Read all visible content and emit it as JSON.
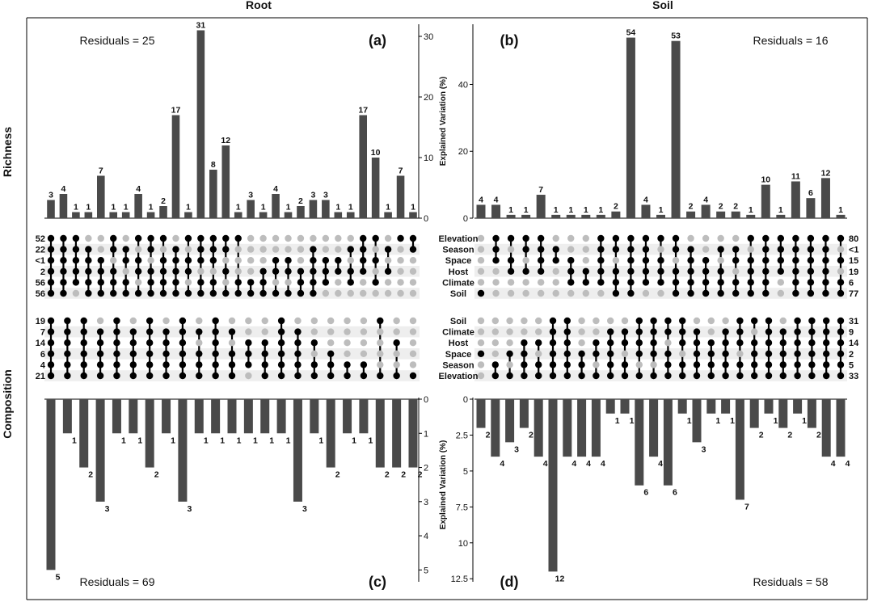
{
  "headers": {
    "root": "Root",
    "soil": "Soil",
    "richness": "Richness",
    "composition": "Composition"
  },
  "axis_label": "Explained Variation (%)",
  "colors": {
    "bar": "#4a4a4a",
    "dot_on": "#000000",
    "dot_off": "#bdbdbd",
    "stripe": "#eeeeee",
    "axis": "#000000"
  },
  "set_labels": {
    "richness": [
      "Elevation",
      "Season",
      "Space",
      "Host",
      "Climate",
      "Soil"
    ],
    "composition": [
      "Soil",
      "Climate",
      "Host",
      "Space",
      "Season",
      "Elevation"
    ]
  },
  "chart_data": [
    {
      "id": "a",
      "type": "bar",
      "panel_label": "(a)",
      "title": "Root",
      "subtitle": "Richness",
      "residuals": "Residuals = 25",
      "ylabel": "",
      "ylim": [
        0,
        32
      ],
      "ticks": [
        0,
        10,
        20,
        30
      ],
      "values": [
        3,
        4,
        1,
        1,
        7,
        1,
        1,
        4,
        1,
        2,
        17,
        1,
        31,
        8,
        12,
        1,
        3,
        1,
        4,
        1,
        2,
        3,
        3,
        1,
        1,
        17,
        10,
        1,
        7,
        1
      ],
      "value_labels": [
        "3",
        "4",
        "1",
        "1",
        "7",
        "1",
        "1",
        "4",
        "1",
        "2",
        "17",
        "1",
        "31",
        "8",
        "12",
        "1",
        "3",
        "1",
        "4",
        "1",
        "2",
        "3",
        "3",
        "1",
        "1",
        "17",
        "10",
        "1",
        "7",
        "1"
      ],
      "set_values": [
        "52",
        "22",
        "<1",
        "2",
        "56",
        "56"
      ],
      "matrix": [
        [
          1,
          1,
          1,
          0,
          0,
          1,
          0,
          1,
          1,
          1,
          0,
          1,
          1,
          1,
          1,
          1,
          0,
          0,
          0,
          0,
          0,
          0,
          0,
          0,
          0,
          1,
          1,
          0,
          1,
          1
        ],
        [
          1,
          1,
          1,
          1,
          0,
          1,
          1,
          0,
          1,
          0,
          1,
          0,
          1,
          1,
          1,
          0,
          0,
          0,
          0,
          0,
          0,
          1,
          0,
          0,
          1,
          1,
          0,
          1,
          0,
          1
        ],
        [
          1,
          1,
          1,
          1,
          1,
          0,
          1,
          1,
          0,
          1,
          1,
          1,
          1,
          1,
          0,
          0,
          0,
          0,
          1,
          1,
          0,
          1,
          1,
          1,
          0,
          1,
          1,
          0,
          0,
          0
        ],
        [
          1,
          1,
          1,
          1,
          1,
          1,
          0,
          1,
          1,
          1,
          1,
          1,
          0,
          0,
          1,
          0,
          0,
          1,
          1,
          1,
          1,
          1,
          1,
          1,
          1,
          1,
          0,
          1,
          0,
          0
        ],
        [
          1,
          1,
          1,
          1,
          1,
          1,
          1,
          0,
          1,
          1,
          1,
          0,
          1,
          1,
          0,
          1,
          1,
          1,
          0,
          0,
          1,
          1,
          1,
          0,
          1,
          0,
          1,
          0,
          0,
          0
        ],
        [
          1,
          1,
          0,
          1,
          1,
          1,
          1,
          1,
          1,
          1,
          1,
          1,
          1,
          1,
          1,
          1,
          1,
          1,
          1,
          1,
          1,
          1,
          0,
          0,
          0,
          0,
          0,
          0,
          0,
          0
        ]
      ]
    },
    {
      "id": "b",
      "type": "bar",
      "panel_label": "(b)",
      "title": "Soil",
      "subtitle": "Richness",
      "residuals": "Residuals = 16",
      "ylabel": "Explained Variation (%)",
      "ylim": [
        0,
        58
      ],
      "ticks": [
        0,
        20,
        40
      ],
      "values": [
        4,
        4,
        1,
        1,
        7,
        1,
        1,
        1,
        1,
        2,
        54,
        4,
        1,
        53,
        2,
        4,
        2,
        2,
        1,
        10,
        1,
        11,
        6,
        12,
        1
      ],
      "value_labels": [
        "4",
        "4",
        "1",
        "1",
        "7",
        "1",
        "1",
        "1",
        "1",
        "2",
        "54",
        "4",
        "1",
        "53",
        "2",
        "4",
        "2",
        "2",
        "1",
        "10",
        "1",
        "11",
        "6",
        "12",
        "1"
      ],
      "set_values": [
        "80",
        "<1",
        "15",
        "19",
        "6",
        "77"
      ],
      "matrix": [
        [
          0,
          1,
          1,
          1,
          1,
          0,
          0,
          0,
          1,
          1,
          1,
          1,
          1,
          1,
          0,
          0,
          0,
          0,
          1,
          1,
          1,
          1,
          1,
          1,
          1
        ],
        [
          0,
          1,
          0,
          1,
          1,
          1,
          0,
          0,
          1,
          1,
          1,
          1,
          0,
          1,
          1,
          0,
          1,
          1,
          0,
          1,
          1,
          1,
          1,
          1,
          0
        ],
        [
          0,
          1,
          1,
          0,
          1,
          1,
          1,
          0,
          1,
          0,
          1,
          1,
          1,
          0,
          1,
          1,
          0,
          1,
          1,
          1,
          1,
          1,
          1,
          1,
          1
        ],
        [
          0,
          0,
          1,
          1,
          1,
          0,
          1,
          1,
          1,
          1,
          1,
          1,
          1,
          1,
          1,
          1,
          1,
          0,
          1,
          1,
          1,
          1,
          1,
          1,
          0
        ],
        [
          0,
          0,
          0,
          0,
          0,
          0,
          1,
          1,
          1,
          1,
          1,
          1,
          1,
          1,
          1,
          1,
          1,
          1,
          1,
          1,
          0,
          1,
          1,
          1,
          1
        ],
        [
          1,
          0,
          0,
          0,
          0,
          0,
          0,
          0,
          0,
          1,
          1,
          0,
          0,
          1,
          1,
          1,
          1,
          1,
          1,
          1,
          0,
          1,
          1,
          1,
          1
        ]
      ]
    },
    {
      "id": "c",
      "type": "bar",
      "panel_label": "(c)",
      "title": "Root",
      "subtitle": "Composition",
      "residuals": "Residuals = 69",
      "ylabel": "",
      "ylim": [
        0,
        5.3
      ],
      "ticks": [
        0,
        1,
        2,
        3,
        4,
        5
      ],
      "inverted": true,
      "values": [
        5,
        1,
        2,
        3,
        1,
        1,
        2,
        1,
        3,
        1,
        1,
        1,
        1,
        1,
        1,
        3,
        1,
        2,
        1,
        1,
        2,
        2,
        2
      ],
      "value_labels": [
        "5",
        "1",
        "2",
        "3",
        "1",
        "1",
        "2",
        "1",
        "3",
        "1",
        "1",
        "1",
        "1",
        "1",
        "1",
        "3",
        "1",
        "2",
        "1",
        "1",
        "2",
        "2",
        "2"
      ],
      "set_values": [
        "19",
        "7",
        "14",
        "6",
        "4",
        "21"
      ],
      "matrix": [
        [
          1,
          1,
          1,
          0,
          1,
          0,
          1,
          0,
          1,
          0,
          1,
          0,
          0,
          0,
          1,
          0,
          0,
          0,
          0,
          0,
          1,
          0,
          0
        ],
        [
          1,
          1,
          1,
          1,
          1,
          1,
          1,
          1,
          1,
          1,
          1,
          1,
          0,
          0,
          1,
          1,
          0,
          0,
          0,
          0,
          0,
          0,
          0
        ],
        [
          1,
          1,
          1,
          1,
          1,
          1,
          1,
          1,
          1,
          0,
          1,
          0,
          1,
          1,
          1,
          1,
          1,
          0,
          0,
          0,
          0,
          1,
          0
        ],
        [
          1,
          1,
          1,
          1,
          1,
          1,
          1,
          1,
          1,
          1,
          1,
          1,
          1,
          1,
          1,
          1,
          0,
          1,
          0,
          0,
          0,
          0,
          0
        ],
        [
          1,
          1,
          1,
          1,
          1,
          1,
          1,
          1,
          1,
          1,
          1,
          1,
          1,
          1,
          1,
          1,
          1,
          1,
          1,
          1,
          0,
          0,
          0
        ],
        [
          1,
          1,
          1,
          1,
          1,
          1,
          1,
          1,
          1,
          1,
          1,
          1,
          0,
          1,
          1,
          1,
          1,
          1,
          1,
          1,
          1,
          1,
          1
        ]
      ]
    },
    {
      "id": "d",
      "type": "bar",
      "panel_label": "(d)",
      "title": "Soil",
      "subtitle": "Composition",
      "residuals": "Residuals = 58",
      "ylabel": "Explained Variation (%)",
      "ylim": [
        0,
        12.6
      ],
      "ticks": [
        0,
        2.5,
        5,
        7.5,
        10,
        12.5
      ],
      "inverted": true,
      "values": [
        2,
        4,
        3,
        2,
        4,
        12,
        4,
        4,
        4,
        1,
        1,
        6,
        4,
        6,
        1,
        3,
        1,
        1,
        7,
        2,
        1,
        2,
        1,
        2,
        4,
        4
      ],
      "value_labels": [
        "2",
        "4",
        "3",
        "2",
        "4",
        "12",
        "4",
        "4",
        "4",
        "1",
        "1",
        "6",
        "4",
        "6",
        "1",
        "3",
        "1",
        "1",
        "7",
        "2",
        "1",
        "2",
        "1",
        "2",
        "4",
        "4"
      ],
      "set_values": [
        "31",
        "9",
        "14",
        "2",
        "5",
        "33"
      ],
      "matrix": [
        [
          0,
          0,
          0,
          0,
          0,
          1,
          1,
          0,
          0,
          0,
          0,
          1,
          1,
          1,
          1,
          0,
          0,
          0,
          1,
          1,
          1,
          0,
          1,
          1,
          1,
          1
        ],
        [
          0,
          0,
          0,
          0,
          0,
          1,
          1,
          0,
          0,
          1,
          1,
          1,
          1,
          1,
          1,
          1,
          0,
          1,
          1,
          0,
          1,
          1,
          1,
          1,
          1,
          1
        ],
        [
          0,
          0,
          0,
          1,
          1,
          1,
          1,
          0,
          1,
          1,
          1,
          1,
          1,
          0,
          1,
          1,
          1,
          1,
          1,
          1,
          1,
          1,
          1,
          1,
          1,
          1
        ],
        [
          1,
          0,
          1,
          1,
          0,
          1,
          1,
          1,
          1,
          1,
          0,
          1,
          1,
          1,
          0,
          1,
          1,
          1,
          0,
          1,
          1,
          1,
          1,
          1,
          1,
          1
        ],
        [
          0,
          1,
          0,
          1,
          1,
          1,
          1,
          1,
          0,
          1,
          1,
          0,
          0,
          1,
          1,
          1,
          1,
          1,
          1,
          1,
          1,
          1,
          1,
          1,
          1,
          1
        ],
        [
          0,
          1,
          1,
          1,
          1,
          1,
          1,
          1,
          1,
          1,
          1,
          1,
          1,
          1,
          1,
          1,
          1,
          1,
          1,
          1,
          1,
          1,
          1,
          1,
          1,
          1
        ]
      ]
    }
  ]
}
